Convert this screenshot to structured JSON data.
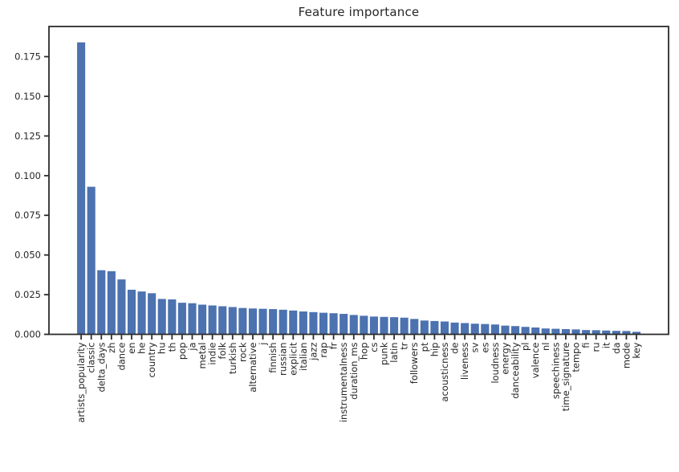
{
  "chart_data": {
    "type": "bar",
    "title": "Feature importance",
    "xlabel": "",
    "ylabel": "",
    "grid": false,
    "legend": null,
    "xtick_rotation": 90,
    "ylim": [
      0,
      0.194
    ],
    "yticks": [
      0.0,
      0.025,
      0.05,
      0.075,
      0.1,
      0.125,
      0.15,
      0.175
    ],
    "ytick_decimals": 3,
    "bar_color": "#4c72b0",
    "text_color": "#262626",
    "spine_color": "#2b2b2b",
    "categories": [
      "artists_popularity",
      "classic",
      "delta_days",
      "zh",
      "dance",
      "en",
      "he",
      "country",
      "hu",
      "th",
      "pop",
      "ja",
      "metal",
      "indie",
      "folk",
      "turkish",
      "rock",
      "alternative",
      "j",
      "finnish",
      "russian",
      "explicit",
      "italian",
      "jazz",
      "rap",
      "fr",
      "instrumentalness",
      "duration_ms",
      "hop",
      "cs",
      "punk",
      "latin",
      "tr",
      "followers",
      "pt",
      "hip",
      "acousticness",
      "de",
      "liveness",
      "sv",
      "es",
      "loudness",
      "energy",
      "danceability",
      "pl",
      "valence",
      "nl",
      "speechiness",
      "time_signature",
      "tempo",
      "fi",
      "ru",
      "it",
      "da",
      "mode",
      "key"
    ],
    "values": [
      0.184,
      0.093,
      0.0404,
      0.0398,
      0.0346,
      0.0281,
      0.027,
      0.0259,
      0.0223,
      0.022,
      0.0199,
      0.0196,
      0.0187,
      0.0182,
      0.0177,
      0.0172,
      0.0166,
      0.0163,
      0.0161,
      0.0159,
      0.0155,
      0.015,
      0.0144,
      0.014,
      0.0136,
      0.0133,
      0.0129,
      0.0122,
      0.0117,
      0.0112,
      0.011,
      0.0108,
      0.0105,
      0.0097,
      0.0087,
      0.0084,
      0.0081,
      0.0074,
      0.0071,
      0.0067,
      0.0065,
      0.0062,
      0.0055,
      0.0052,
      0.0047,
      0.0043,
      0.0037,
      0.0035,
      0.0033,
      0.0031,
      0.0027,
      0.0026,
      0.0024,
      0.0022,
      0.0021,
      0.0016
    ]
  }
}
